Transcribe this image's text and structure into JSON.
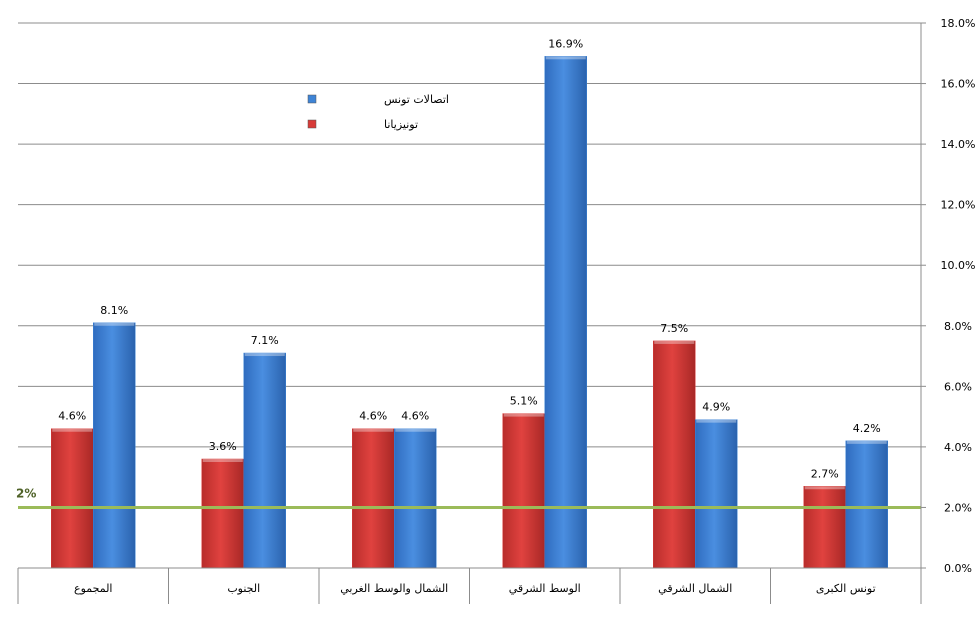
{
  "chart_data": {
    "type": "bar",
    "categories": [
      "المجموع",
      "الجنوب",
      "الشمال والوسط الغربي",
      "الوسط الشرقي",
      "الشمال الشرقي",
      "تونس الكبرى"
    ],
    "series": [
      {
        "name": "تونيزيانا",
        "color": "#d83b38",
        "values": [
          4.6,
          3.6,
          4.6,
          5.1,
          7.5,
          2.7
        ],
        "labels": [
          "4.6%",
          "3.6%",
          "4.6%",
          "5.1%",
          "7.5%",
          "2.7%"
        ]
      },
      {
        "name": "اتصالات تونس",
        "color": "#3e84d6",
        "values": [
          8.1,
          7.1,
          4.6,
          16.9,
          4.9,
          4.2
        ],
        "labels": [
          "8.1%",
          "7.1%",
          "4.6%",
          "16.9%",
          "4.9%",
          "4.2%"
        ]
      }
    ],
    "ylim": [
      0,
      18
    ],
    "yticks": [
      0,
      2,
      4,
      6,
      8,
      10,
      12,
      14,
      16,
      18
    ],
    "ytick_labels": [
      "0.0%",
      "2.0%",
      "4.0%",
      "6.0%",
      "8.0%",
      "10.0%",
      "12.0%",
      "14.0%",
      "16.0%",
      "18.0%"
    ],
    "y_axis_side": "right",
    "grid": true,
    "reference_line": {
      "value": 2,
      "label": "2%",
      "color": "#9bbb59"
    },
    "legend": {
      "placement": "top-left",
      "order": [
        "اتصالات تونس",
        "تونيزيانا"
      ]
    }
  }
}
